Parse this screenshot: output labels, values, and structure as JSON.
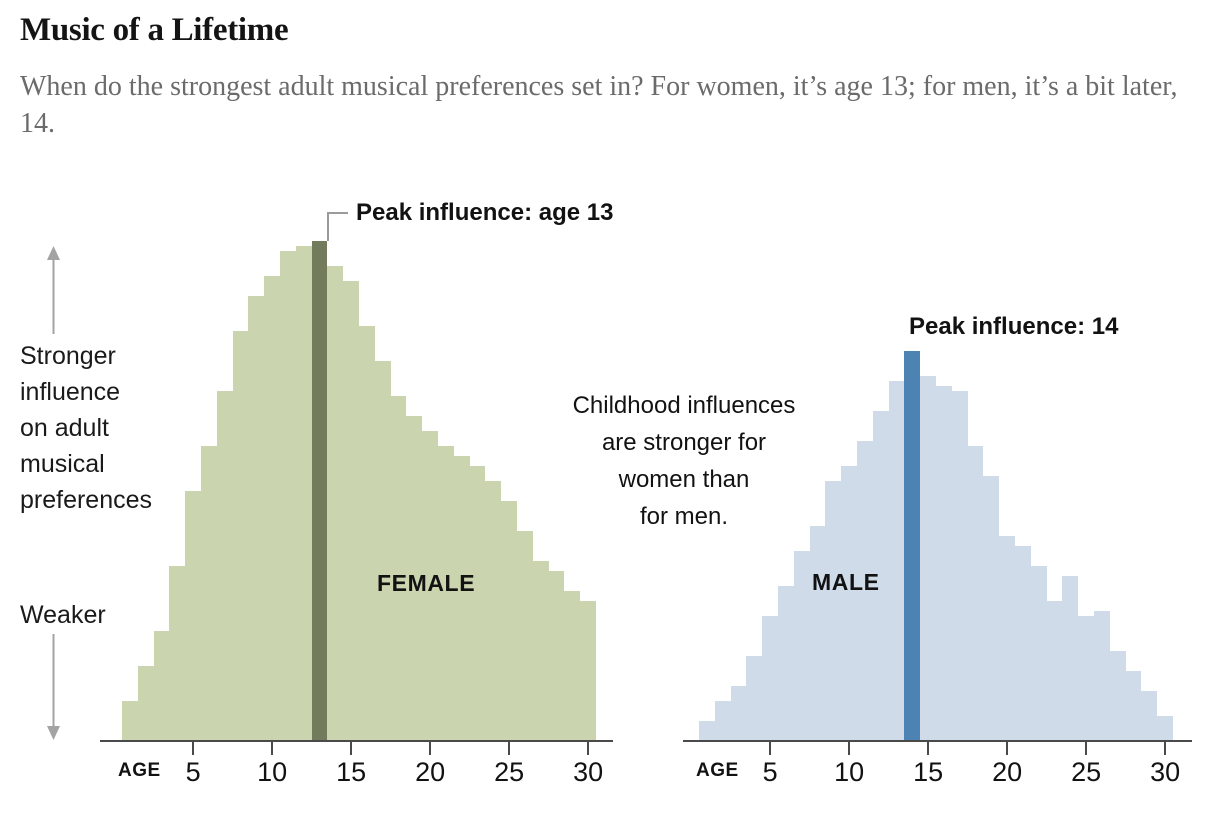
{
  "header": {
    "title": "Music of a Lifetime",
    "subtitle": "When do the strongest adult musical preferences set in? For women, it’s age 13; for men, it’s a bit later, 14."
  },
  "y_axis": {
    "stronger_lines": [
      "Stronger",
      "influence",
      "on adult",
      "musical",
      "preferences"
    ],
    "weaker": "Weaker"
  },
  "annotations": {
    "female_peak_label": "Peak influence: age 13",
    "male_peak_label": "Peak influence: 14",
    "middle_lines": [
      "Childhood influences",
      "are stronger for",
      "women than",
      "for men."
    ]
  },
  "colors": {
    "female_fill": "#cad4ae",
    "female_peak": "#727c5c",
    "male_fill": "#cfdbe9",
    "male_peak": "#4d83b2",
    "axis": "#4a4a4a",
    "arrow": "#a3a3a3",
    "leader": "#9b9b9b",
    "subtitle_text": "#6b6b6b"
  },
  "chart_data": [
    {
      "id": "female",
      "type": "bar",
      "series_label": "FEMALE",
      "xlabel": "AGE",
      "peak_age": 13,
      "ages": [
        1,
        2,
        3,
        4,
        5,
        6,
        7,
        8,
        9,
        10,
        11,
        12,
        13,
        14,
        15,
        16,
        17,
        18,
        19,
        20,
        21,
        22,
        23,
        24,
        25,
        26,
        27,
        28,
        29,
        30
      ],
      "values": [
        0.08,
        0.15,
        0.22,
        0.35,
        0.5,
        0.59,
        0.7,
        0.82,
        0.89,
        0.93,
        0.98,
        0.99,
        1.0,
        0.95,
        0.92,
        0.83,
        0.76,
        0.69,
        0.65,
        0.62,
        0.59,
        0.57,
        0.55,
        0.52,
        0.48,
        0.42,
        0.36,
        0.34,
        0.3,
        0.28
      ],
      "tick_ages": [
        5,
        10,
        15,
        20,
        25,
        30
      ],
      "ylim": [
        0,
        1
      ],
      "value_scale": "relative influence on adult musical preferences; female peak at age 13 = 1.0"
    },
    {
      "id": "male",
      "type": "bar",
      "series_label": "MALE",
      "xlabel": "AGE",
      "peak_age": 14,
      "ages": [
        1,
        2,
        3,
        4,
        5,
        6,
        7,
        8,
        9,
        10,
        11,
        12,
        13,
        14,
        15,
        16,
        17,
        18,
        19,
        20,
        21,
        22,
        23,
        24,
        25,
        26,
        27,
        28,
        29,
        30
      ],
      "values": [
        0.04,
        0.08,
        0.11,
        0.17,
        0.25,
        0.31,
        0.38,
        0.43,
        0.52,
        0.55,
        0.6,
        0.66,
        0.72,
        0.78,
        0.73,
        0.71,
        0.7,
        0.59,
        0.53,
        0.41,
        0.39,
        0.35,
        0.28,
        0.33,
        0.25,
        0.26,
        0.18,
        0.14,
        0.1,
        0.05
      ],
      "tick_ages": [
        5,
        10,
        15,
        20,
        25,
        30
      ],
      "ylim": [
        0,
        1
      ],
      "value_scale": "relative influence on adult musical preferences; female peak at age 13 = 1.0"
    }
  ]
}
